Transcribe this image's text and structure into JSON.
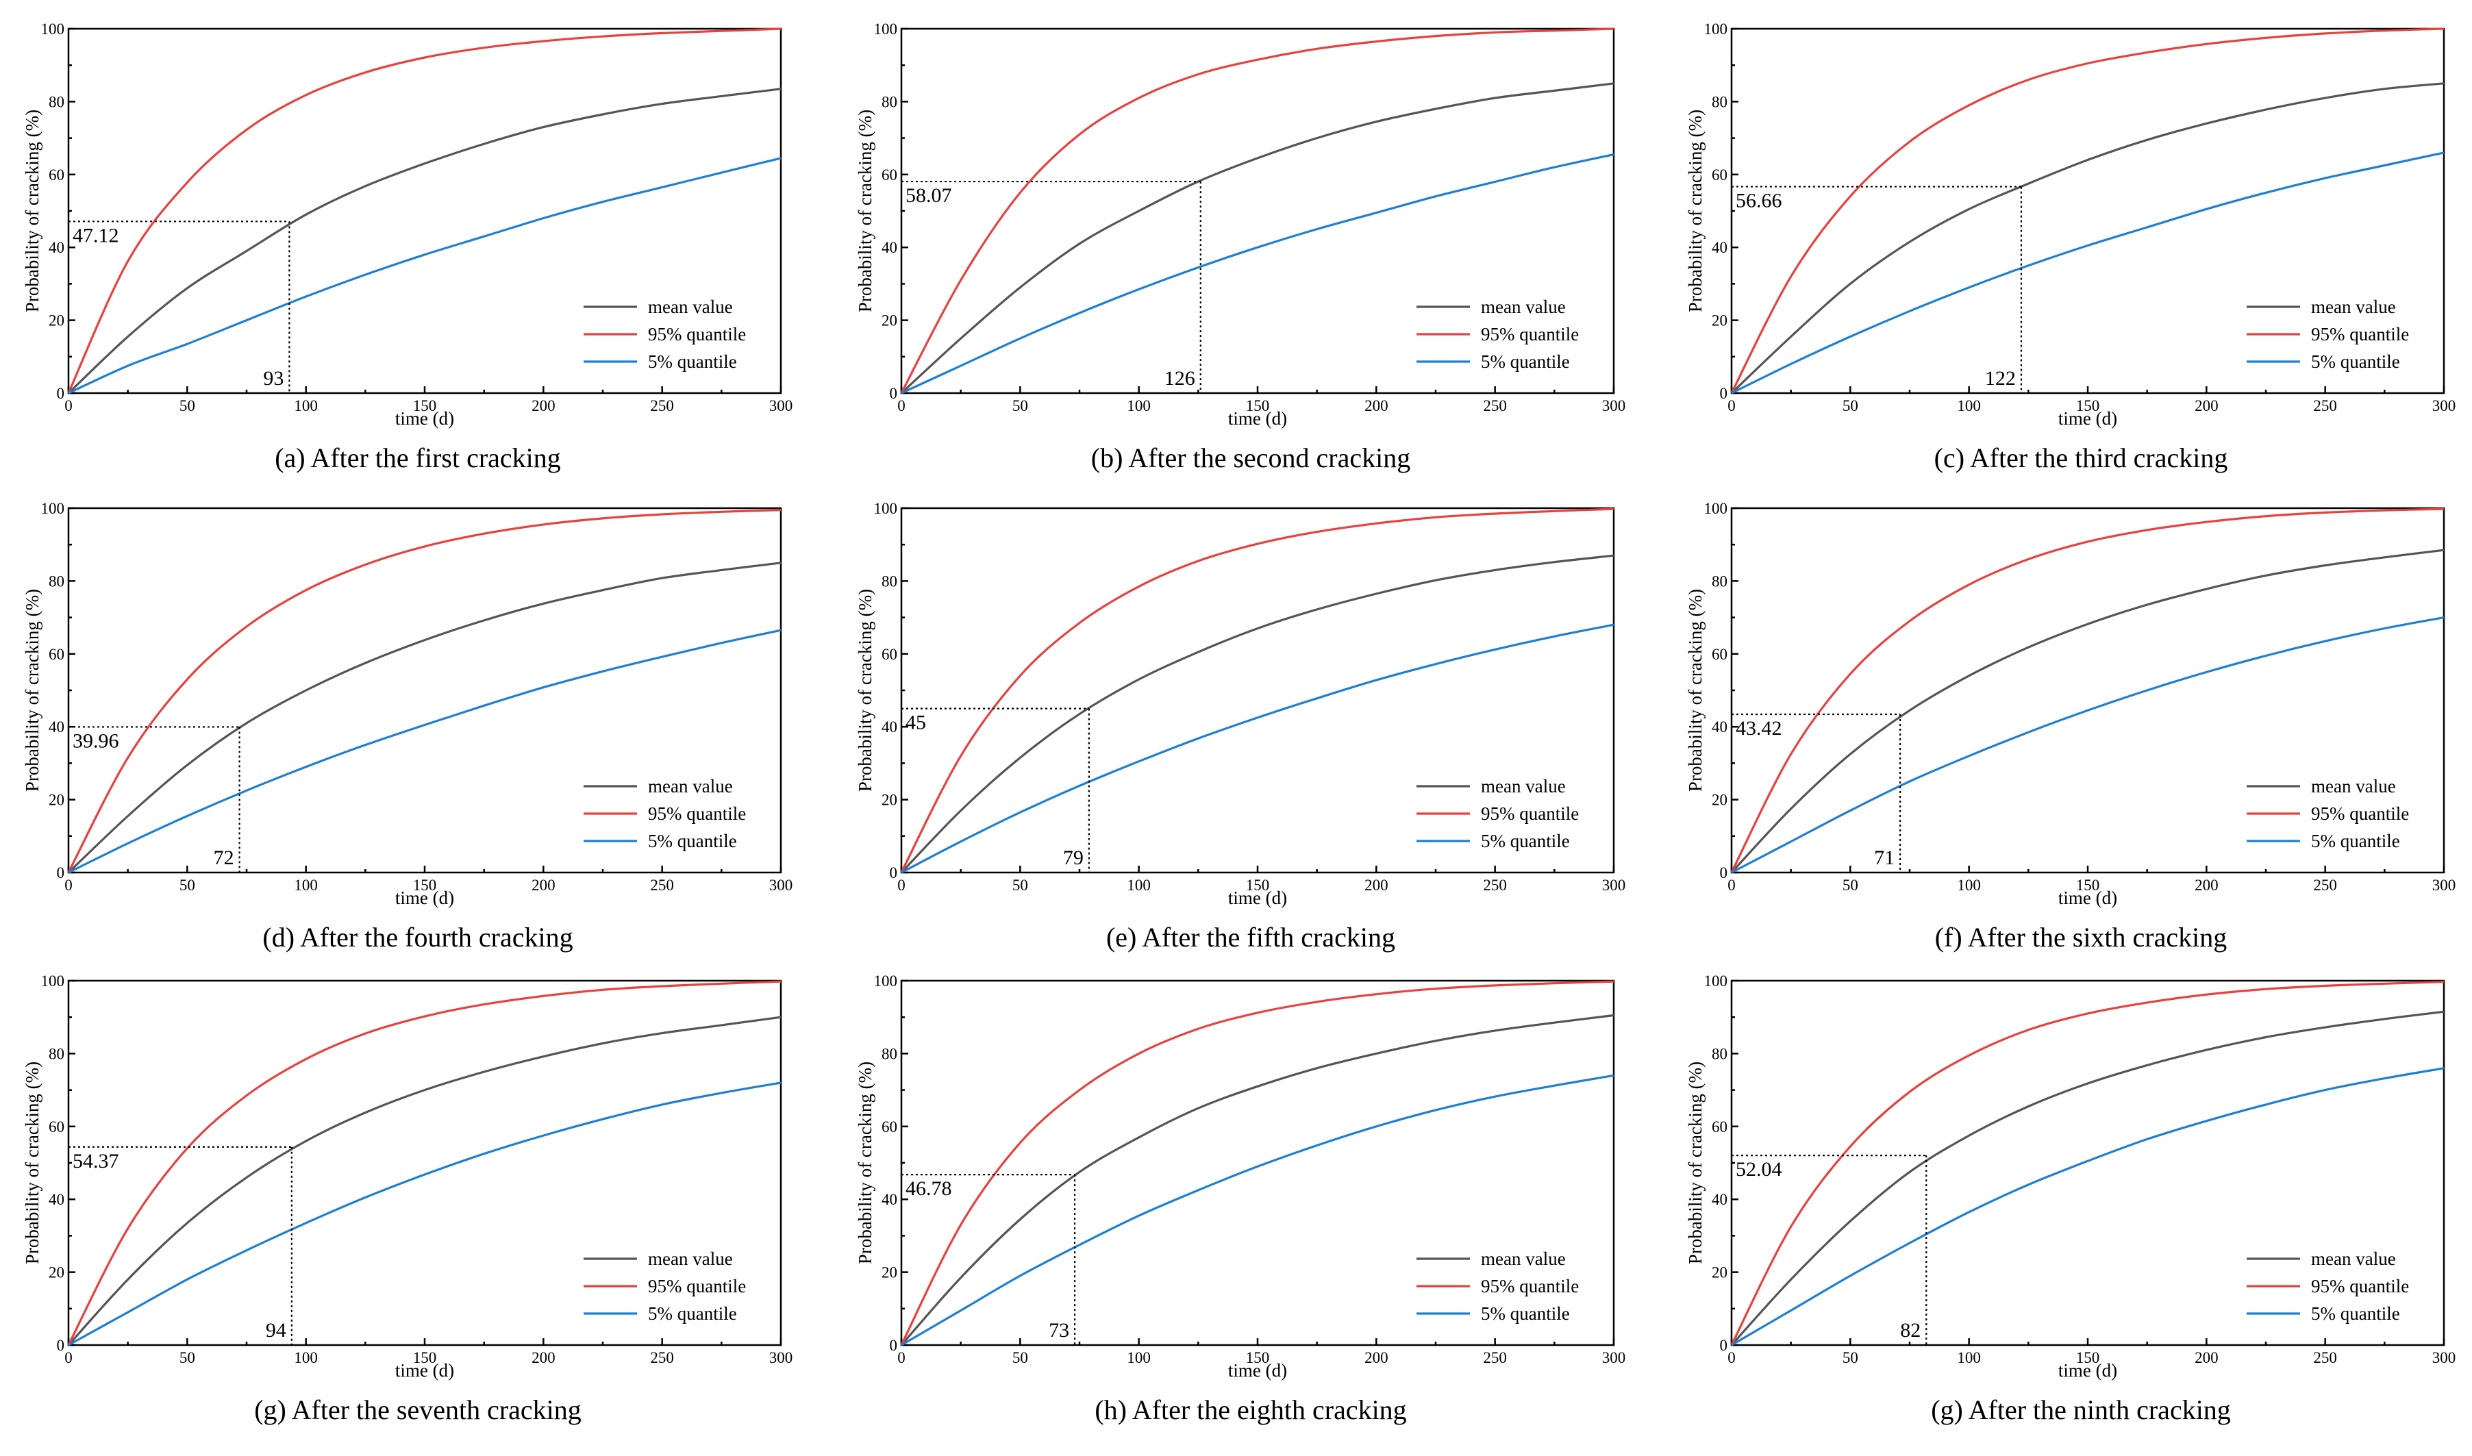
{
  "colors": {
    "mean": "#555555",
    "q95": "#e8413e",
    "q05": "#1d7fd6",
    "axis": "#000000"
  },
  "chart_data": [
    {
      "type": "line",
      "caption": "(a) After the first cracking",
      "xlabel": "time (d)",
      "ylabel": "Probability of cracking (%)",
      "xlim": [
        0,
        300
      ],
      "ylim": [
        0,
        100
      ],
      "xticks": [
        "0",
        "50",
        "100",
        "150",
        "200",
        "250",
        "300"
      ],
      "yticks": [
        "0",
        "20",
        "40",
        "60",
        "80",
        "100"
      ],
      "legend": [
        "mean value",
        "95% quantile",
        "5% quantile"
      ],
      "x": [
        0,
        25,
        50,
        75,
        100,
        125,
        150,
        175,
        200,
        225,
        250,
        275,
        300
      ],
      "series": [
        {
          "name": "mean value",
          "values": [
            0,
            15.5,
            28.8,
            39.0,
            49.0,
            56.8,
            63.0,
            68.4,
            73.0,
            76.5,
            79.4,
            81.5,
            83.5
          ]
        },
        {
          "name": "95% quantile",
          "values": [
            0,
            36.2,
            57.8,
            72.3,
            81.8,
            88.0,
            92.1,
            94.8,
            96.6,
            97.9,
            98.8,
            99.4,
            100
          ]
        },
        {
          "name": "5% quantile",
          "values": [
            0,
            7.5,
            13.5,
            20.0,
            26.5,
            32.5,
            38.0,
            43.0,
            48.0,
            52.5,
            56.5,
            60.5,
            64.5
          ]
        }
      ],
      "annotation": {
        "x": 93,
        "y": 47.12,
        "x_label": "93",
        "y_label": "47.12"
      }
    },
    {
      "type": "line",
      "caption": "(b) After the second cracking",
      "xlabel": "time (d)",
      "ylabel": "Probability of cracking (%)",
      "xlim": [
        0,
        300
      ],
      "ylim": [
        0,
        100
      ],
      "xticks": [
        "0",
        "50",
        "100",
        "150",
        "200",
        "250",
        "300"
      ],
      "yticks": [
        "0",
        "20",
        "40",
        "60",
        "80",
        "100"
      ],
      "legend": [
        "mean value",
        "95% quantile",
        "5% quantile"
      ],
      "x": [
        0,
        25,
        50,
        75,
        100,
        125,
        150,
        175,
        200,
        225,
        250,
        275,
        300
      ],
      "series": [
        {
          "name": "mean value",
          "values": [
            0,
            15.0,
            29.0,
            41.0,
            50.0,
            58.07,
            64.5,
            70.0,
            74.5,
            78.0,
            81.0,
            83.0,
            85.0
          ]
        },
        {
          "name": "95% quantile",
          "values": [
            0,
            31.0,
            55.0,
            71.0,
            81.0,
            87.5,
            91.5,
            94.5,
            96.5,
            98.0,
            99.0,
            99.5,
            100
          ]
        },
        {
          "name": "5% quantile",
          "values": [
            0,
            7.5,
            15.0,
            22.0,
            28.5,
            34.5,
            40.0,
            45.0,
            49.5,
            54.0,
            58.0,
            62.0,
            65.5
          ]
        }
      ],
      "annotation": {
        "x": 126,
        "y": 58.07,
        "x_label": "126",
        "y_label": "58.07"
      }
    },
    {
      "type": "line",
      "caption": "(c) After the third cracking",
      "xlabel": "time (d)",
      "ylabel": "Probability of cracking (%)",
      "xlim": [
        0,
        300
      ],
      "ylim": [
        0,
        100
      ],
      "xticks": [
        "0",
        "50",
        "100",
        "150",
        "200",
        "250",
        "300"
      ],
      "yticks": [
        "0",
        "20",
        "40",
        "60",
        "80",
        "100"
      ],
      "legend": [
        "mean value",
        "95% quantile",
        "5% quantile"
      ],
      "x": [
        0,
        25,
        50,
        75,
        100,
        125,
        150,
        175,
        200,
        225,
        250,
        275,
        300
      ],
      "series": [
        {
          "name": "mean value",
          "values": [
            0,
            15.5,
            30.0,
            41.5,
            50.5,
            57.5,
            64.0,
            69.5,
            74.0,
            77.8,
            81.0,
            83.5,
            85.0
          ]
        },
        {
          "name": "95% quantile",
          "values": [
            0,
            32.0,
            54.0,
            69.0,
            79.0,
            86.0,
            90.5,
            93.5,
            95.8,
            97.5,
            98.7,
            99.5,
            100
          ]
        },
        {
          "name": "5% quantile",
          "values": [
            0,
            8.0,
            15.5,
            22.5,
            29.0,
            35.0,
            40.5,
            45.5,
            50.5,
            55.0,
            59.0,
            62.5,
            66.0
          ]
        }
      ],
      "annotation": {
        "x": 122,
        "y": 56.66,
        "x_label": "122",
        "y_label": "56.66"
      }
    },
    {
      "type": "line",
      "caption": "(d) After the fourth cracking",
      "xlabel": "time (d)",
      "ylabel": "Probability of cracking (%)",
      "xlim": [
        0,
        300
      ],
      "ylim": [
        0,
        100
      ],
      "xticks": [
        "0",
        "50",
        "100",
        "150",
        "200",
        "250",
        "300"
      ],
      "yticks": [
        "0",
        "20",
        "40",
        "60",
        "80",
        "100"
      ],
      "legend": [
        "mean value",
        "95% quantile",
        "5% quantile"
      ],
      "x": [
        0,
        25,
        50,
        75,
        100,
        125,
        150,
        175,
        200,
        225,
        250,
        275,
        300
      ],
      "series": [
        {
          "name": "mean value",
          "values": [
            0,
            15.5,
            29.5,
            41.0,
            50.0,
            57.5,
            63.8,
            69.2,
            73.8,
            77.5,
            80.8,
            83.0,
            85.0
          ]
        },
        {
          "name": "95% quantile",
          "values": [
            0,
            31.5,
            53.0,
            67.5,
            77.5,
            84.5,
            89.5,
            93.0,
            95.5,
            97.2,
            98.3,
            99.0,
            99.5
          ]
        },
        {
          "name": "5% quantile",
          "values": [
            0,
            8.0,
            15.5,
            22.5,
            29.0,
            35.0,
            40.5,
            45.8,
            50.8,
            55.2,
            59.2,
            63.0,
            66.5
          ]
        }
      ],
      "annotation": {
        "x": 72,
        "y": 39.96,
        "x_label": "72",
        "y_label": "39.96"
      }
    },
    {
      "type": "line",
      "caption": "(e) After the fifth cracking",
      "xlabel": "time (d)",
      "ylabel": "Probability of cracking (%)",
      "xlim": [
        0,
        300
      ],
      "ylim": [
        0,
        100
      ],
      "xticks": [
        "0",
        "50",
        "100",
        "150",
        "200",
        "250",
        "300"
      ],
      "yticks": [
        "0",
        "20",
        "40",
        "60",
        "80",
        "100"
      ],
      "legend": [
        "mean value",
        "95% quantile",
        "5% quantile"
      ],
      "x": [
        0,
        25,
        50,
        75,
        100,
        125,
        150,
        175,
        200,
        225,
        250,
        275,
        300
      ],
      "series": [
        {
          "name": "mean value",
          "values": [
            0,
            17.0,
            31.5,
            43.5,
            53.0,
            60.5,
            67.0,
            72.2,
            76.5,
            80.2,
            83.0,
            85.2,
            87.0
          ]
        },
        {
          "name": "95% quantile",
          "values": [
            0,
            32.0,
            54.0,
            68.5,
            78.5,
            85.5,
            90.2,
            93.5,
            95.8,
            97.5,
            98.5,
            99.2,
            99.8
          ]
        },
        {
          "name": "5% quantile",
          "values": [
            0,
            8.5,
            16.5,
            23.8,
            30.5,
            36.8,
            42.5,
            47.8,
            52.8,
            57.2,
            61.2,
            64.8,
            68.0
          ]
        }
      ],
      "annotation": {
        "x": 79,
        "y": 45,
        "x_label": "79",
        "y_label": "45"
      }
    },
    {
      "type": "line",
      "caption": "(f) After the sixth cracking",
      "xlabel": "time (d)",
      "ylabel": "Probability of cracking (%)",
      "xlim": [
        0,
        300
      ],
      "ylim": [
        0,
        100
      ],
      "xticks": [
        "0",
        "50",
        "100",
        "150",
        "200",
        "250",
        "300"
      ],
      "yticks": [
        "0",
        "20",
        "40",
        "60",
        "80",
        "100"
      ],
      "legend": [
        "mean value",
        "95% quantile",
        "5% quantile"
      ],
      "x": [
        0,
        25,
        50,
        75,
        100,
        125,
        150,
        175,
        200,
        225,
        250,
        275,
        300
      ],
      "series": [
        {
          "name": "mean value",
          "values": [
            0,
            17.5,
            32.5,
            44.5,
            54.0,
            61.8,
            68.2,
            73.5,
            77.8,
            81.5,
            84.3,
            86.5,
            88.5
          ]
        },
        {
          "name": "95% quantile",
          "values": [
            0,
            32.5,
            54.5,
            69.0,
            79.0,
            86.0,
            90.8,
            94.0,
            96.2,
            97.8,
            98.8,
            99.4,
            99.8
          ]
        },
        {
          "name": "5% quantile",
          "values": [
            0,
            8.5,
            17.0,
            25.0,
            32.0,
            38.5,
            44.5,
            50.0,
            55.0,
            59.5,
            63.5,
            67.0,
            70.0
          ]
        }
      ],
      "annotation": {
        "x": 71,
        "y": 43.42,
        "x_label": "71",
        "y_label": "43.42"
      }
    },
    {
      "type": "line",
      "caption": "(g) After the seventh cracking",
      "xlabel": "time (d)",
      "ylabel": "Probability of cracking (%)",
      "xlim": [
        0,
        300
      ],
      "ylim": [
        0,
        100
      ],
      "xticks": [
        "0",
        "50",
        "100",
        "150",
        "200",
        "250",
        "300"
      ],
      "yticks": [
        "0",
        "20",
        "40",
        "60",
        "80",
        "100"
      ],
      "legend": [
        "mean value",
        "95% quantile",
        "5% quantile"
      ],
      "x": [
        0,
        25,
        50,
        75,
        100,
        125,
        150,
        175,
        200,
        225,
        250,
        275,
        300
      ],
      "series": [
        {
          "name": "mean value",
          "values": [
            0,
            18.0,
            33.5,
            46.0,
            56.0,
            63.8,
            70.0,
            75.0,
            79.2,
            82.8,
            85.6,
            87.8,
            90.0
          ]
        },
        {
          "name": "95% quantile",
          "values": [
            0,
            32.0,
            54.0,
            68.5,
            78.5,
            85.5,
            90.2,
            93.5,
            95.8,
            97.5,
            98.5,
            99.2,
            99.8
          ]
        },
        {
          "name": "5% quantile",
          "values": [
            0,
            9.0,
            18.0,
            26.0,
            33.5,
            40.5,
            46.8,
            52.5,
            57.5,
            62.0,
            66.0,
            69.2,
            72.0
          ]
        }
      ],
      "annotation": {
        "x": 94,
        "y": 54.37,
        "x_label": "94",
        "y_label": "54.37"
      }
    },
    {
      "type": "line",
      "caption": "(h) After the eighth cracking",
      "xlabel": "time (d)",
      "ylabel": "Probability of cracking (%)",
      "xlim": [
        0,
        300
      ],
      "ylim": [
        0,
        100
      ],
      "xticks": [
        "0",
        "50",
        "100",
        "150",
        "200",
        "250",
        "300"
      ],
      "yticks": [
        "0",
        "20",
        "40",
        "60",
        "80",
        "100"
      ],
      "legend": [
        "mean value",
        "95% quantile",
        "5% quantile"
      ],
      "x": [
        0,
        25,
        50,
        75,
        100,
        125,
        150,
        175,
        200,
        225,
        250,
        275,
        300
      ],
      "series": [
        {
          "name": "mean value",
          "values": [
            0,
            18.5,
            34.5,
            47.5,
            57.0,
            65.0,
            71.0,
            76.0,
            80.0,
            83.5,
            86.3,
            88.5,
            90.5
          ]
        },
        {
          "name": "95% quantile",
          "values": [
            0,
            33.0,
            55.5,
            70.0,
            80.0,
            86.8,
            91.2,
            94.2,
            96.3,
            97.8,
            98.7,
            99.3,
            99.8
          ]
        },
        {
          "name": "5% quantile",
          "values": [
            0,
            9.5,
            19.0,
            27.5,
            35.5,
            42.5,
            49.0,
            54.8,
            60.0,
            64.5,
            68.2,
            71.2,
            74.0
          ]
        }
      ],
      "annotation": {
        "x": 73,
        "y": 46.78,
        "x_label": "73",
        "y_label": "46.78"
      }
    },
    {
      "type": "line",
      "caption": "(g) After the ninth cracking",
      "xlabel": "time (d)",
      "ylabel": "Probability of cracking (%)",
      "xlim": [
        0,
        300
      ],
      "ylim": [
        0,
        100
      ],
      "xticks": [
        "0",
        "50",
        "100",
        "150",
        "200",
        "250",
        "300"
      ],
      "yticks": [
        "0",
        "20",
        "40",
        "60",
        "80",
        "100"
      ],
      "legend": [
        "mean value",
        "95% quantile",
        "5% quantile"
      ],
      "x": [
        0,
        25,
        50,
        75,
        100,
        125,
        150,
        175,
        200,
        225,
        250,
        275,
        300
      ],
      "series": [
        {
          "name": "mean value",
          "values": [
            0,
            18.0,
            34.0,
            47.5,
            57.5,
            65.5,
            71.8,
            76.8,
            81.0,
            84.5,
            87.2,
            89.5,
            91.5
          ]
        },
        {
          "name": "95% quantile",
          "values": [
            0,
            32.5,
            54.5,
            69.5,
            79.5,
            86.5,
            91.0,
            94.0,
            96.2,
            97.7,
            98.6,
            99.2,
            99.7
          ]
        },
        {
          "name": "5% quantile",
          "values": [
            0,
            9.5,
            19.0,
            28.0,
            36.5,
            44.0,
            50.5,
            56.5,
            61.5,
            66.0,
            70.0,
            73.2,
            76.0
          ]
        }
      ],
      "annotation": {
        "x": 82,
        "y": 52.04,
        "x_label": "82",
        "y_label": "52.04"
      }
    }
  ]
}
